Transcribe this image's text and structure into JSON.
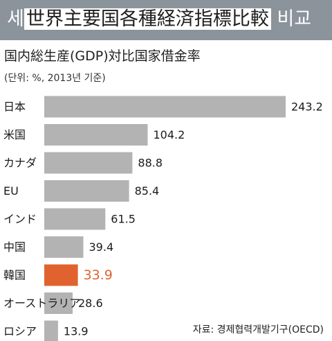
{
  "header": {
    "title_prefix": "세",
    "title_highlight": "世界主要国各種経済指標比較",
    "title_suffix": "비교"
  },
  "subtitle": "国内総生産(GDP)対比国家借金率",
  "unit_note": "(단위: %, 2013년 기준)",
  "source": "자료: 경제협력개발기구(OECD)",
  "colors": {
    "bar": "#b3b3b3",
    "highlight": "#e0622f",
    "header_bg": "#8b939b"
  },
  "chart_data": {
    "type": "bar",
    "orientation": "horizontal",
    "categories": [
      "日本",
      "米国",
      "カナダ",
      "EU",
      "インド",
      "中国",
      "韓国",
      "オーストラリア",
      "ロシア"
    ],
    "values": [
      243.2,
      104.2,
      88.8,
      85.4,
      61.5,
      39.4,
      33.9,
      28.6,
      13.9
    ],
    "value_labels": [
      "243.2",
      "104.2",
      "88.8",
      "85.4",
      "61.5",
      "39.4",
      "33.9",
      "28.6",
      "13.9"
    ],
    "highlight_category": "韓国",
    "xlim": [
      0,
      243.2
    ],
    "grid": false,
    "title": "",
    "xlabel": "",
    "ylabel": ""
  }
}
